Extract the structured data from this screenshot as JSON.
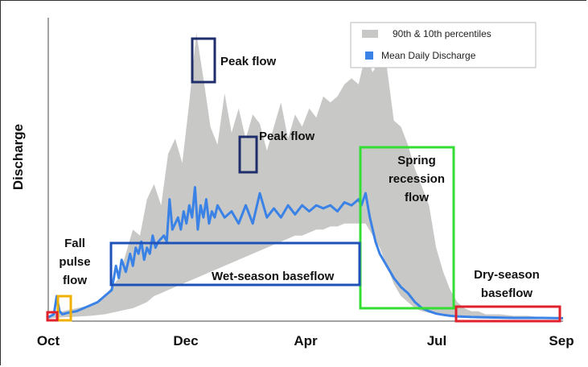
{
  "chart_data": {
    "type": "area",
    "xlabel": "",
    "ylabel": "Discharge",
    "x_ticks": [
      "Oct",
      "Dec",
      "Apr",
      "Jul",
      "Sep"
    ],
    "legend": {
      "position": "top-right",
      "entries": [
        {
          "label": "90th & 10th percentiles",
          "color": "#c8c9c7"
        },
        {
          "label": "Mean Daily Discharge",
          "color": "#3b82e6"
        }
      ]
    },
    "x_domain": [
      0,
      365
    ],
    "y_domain": [
      0,
      100
    ],
    "series": [
      {
        "name": "90th & 10th percentiles",
        "x": [
          0,
          5,
          10,
          20,
          30,
          40,
          50,
          55,
          60,
          65,
          70,
          75,
          80,
          85,
          90,
          95,
          100,
          105,
          110,
          115,
          120,
          125,
          130,
          135,
          140,
          145,
          150,
          155,
          160,
          165,
          170,
          175,
          180,
          185,
          190,
          195,
          200,
          205,
          210,
          215,
          220,
          225,
          230,
          235,
          240,
          245,
          250,
          255,
          260,
          265,
          270,
          275,
          280,
          285,
          290,
          295,
          300,
          305,
          310,
          315,
          320,
          330,
          340,
          350,
          365
        ],
        "upper": [
          1,
          2,
          3,
          4,
          5,
          8,
          14,
          22,
          30,
          28,
          40,
          45,
          38,
          55,
          60,
          52,
          72,
          95,
          80,
          64,
          58,
          75,
          62,
          70,
          60,
          68,
          65,
          56,
          64,
          72,
          60,
          68,
          64,
          70,
          67,
          74,
          72,
          74,
          78,
          80,
          78,
          88,
          82,
          86,
          84,
          66,
          64,
          58,
          50,
          44,
          38,
          24,
          16,
          10,
          6,
          4,
          3,
          3,
          2,
          2,
          2,
          1.5,
          1.5,
          1,
          1
        ],
        "lower": [
          0.5,
          0.8,
          1,
          1.2,
          1.5,
          2,
          3,
          3.5,
          4,
          5,
          6,
          8,
          9,
          10,
          11,
          12,
          13,
          14,
          15,
          16,
          17,
          18,
          19,
          20,
          21,
          22,
          23,
          24,
          25,
          26,
          27,
          28,
          28,
          29,
          30,
          30,
          31,
          31,
          32,
          32,
          32,
          32,
          28,
          24,
          18,
          12,
          8,
          6,
          4,
          3,
          2.5,
          2,
          1.5,
          1.2,
          1,
          0.8,
          0.8,
          0.6,
          0.6,
          0.5,
          0.5,
          0.5,
          0.4,
          0.4,
          0.4
        ]
      },
      {
        "name": "Mean Daily Discharge",
        "x": [
          0,
          4,
          6,
          8,
          10,
          14,
          20,
          25,
          30,
          35,
          40,
          45,
          48,
          50,
          52,
          55,
          58,
          60,
          62,
          64,
          66,
          68,
          70,
          72,
          74,
          76,
          78,
          80,
          82,
          84,
          86,
          88,
          90,
          92,
          94,
          96,
          98,
          100,
          102,
          104,
          106,
          108,
          110,
          112,
          114,
          116,
          118,
          120,
          125,
          130,
          135,
          140,
          145,
          150,
          155,
          160,
          165,
          170,
          175,
          180,
          185,
          190,
          195,
          200,
          205,
          210,
          215,
          220,
          222,
          225,
          228,
          230,
          232,
          235,
          240,
          245,
          250,
          255,
          260,
          265,
          270,
          275,
          280,
          285,
          290,
          300,
          310,
          320,
          330,
          340,
          350,
          365
        ],
        "y": [
          1,
          2,
          8,
          3,
          2,
          2.5,
          3,
          4,
          5,
          6,
          8,
          10,
          18,
          14,
          20,
          16,
          22,
          18,
          24,
          22,
          26,
          20,
          24,
          22,
          28,
          24,
          26,
          27,
          28,
          26,
          40,
          30,
          32,
          34,
          30,
          36,
          32,
          38,
          34,
          44,
          30,
          38,
          34,
          40,
          32,
          36,
          34,
          38,
          34,
          36,
          32,
          38,
          32,
          42,
          34,
          37,
          34,
          38,
          35,
          38,
          36,
          38,
          37,
          38,
          36,
          39,
          38,
          40,
          38,
          42,
          34,
          30,
          26,
          22,
          18,
          14,
          11,
          9,
          6,
          4,
          3,
          2.2,
          1.8,
          1.5,
          1.3,
          1.1,
          1,
          0.9,
          0.8,
          0.8,
          0.8,
          0.7
        ]
      }
    ],
    "annotations": [
      {
        "text": "Peak flow",
        "color": "#1f2d6b"
      },
      {
        "text": "Peak flow",
        "color": "#1f2d6b"
      },
      {
        "lines": [
          "Spring",
          "recession",
          "flow"
        ],
        "color": "#33dd33"
      },
      {
        "text": "Wet-season baseflow",
        "color": "#1f52b8"
      },
      {
        "lines": [
          "Fall",
          "pulse",
          "flow"
        ],
        "color": "#f0b000"
      },
      {
        "lines": [
          "Dry-season",
          "baseflow"
        ],
        "color": "#e0202a"
      }
    ]
  }
}
